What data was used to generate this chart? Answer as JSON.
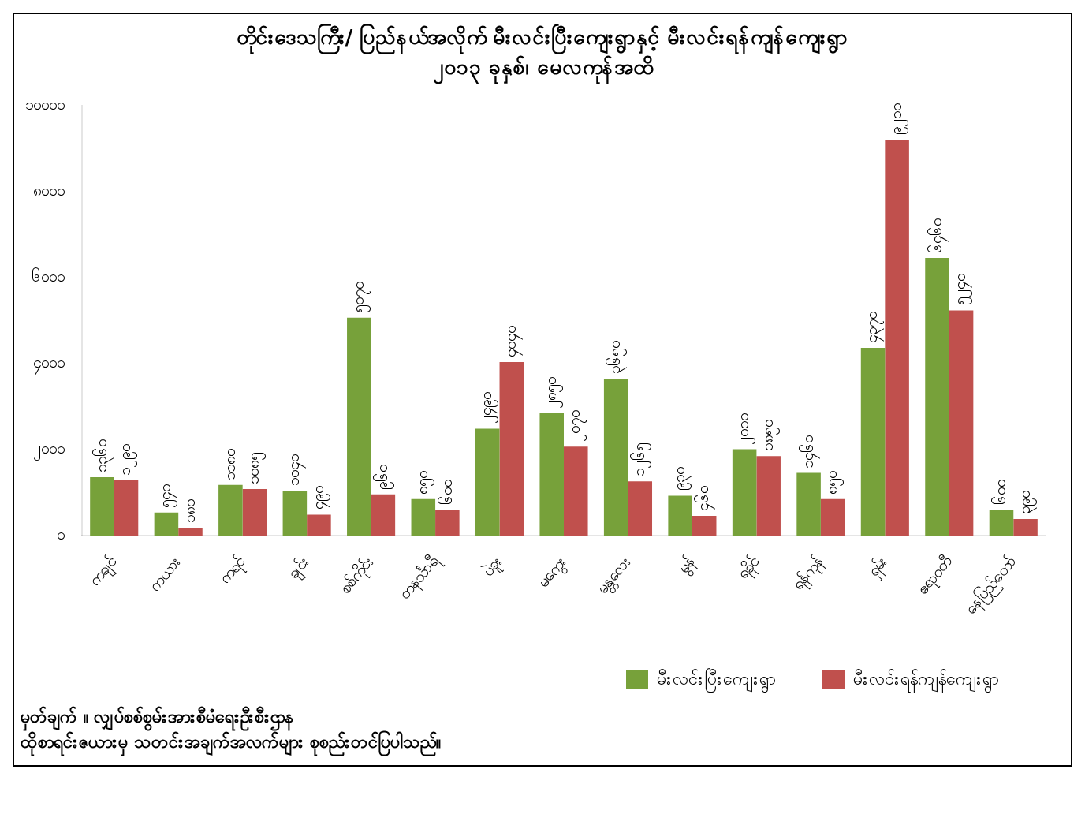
{
  "chart_data": {
    "type": "bar",
    "title": "တိုင်းဒေသကြီး/ ပြည်နယ်အလိုက် မီးလင်းပြီးကျေးရွာနှင့် မီးလင်းရန်ကျန်ကျေးရွာ",
    "subtitle": "၂၀၁၃ ခုနှစ်၊ မေလကုန်အထိ",
    "categories": [
      "ကချင်",
      "ကယား",
      "ကရင်",
      "ချင်း",
      "စစ်ကိုင်း",
      "တနင်္သာရီ",
      "ပဲခူး",
      "မကွေး",
      "မန္တလေး",
      "မွန်",
      "ရခိုင်",
      "ရန်ကုန်",
      "ရှမ်း",
      "ဧရာဝတီ",
      "နေပြည်တော်"
    ],
    "series": [
      {
        "name": "မီးလင်းပြီးကျေးရွာ",
        "color": "#77a13a",
        "values": [
          1360,
          540,
          1180,
          1040,
          5070,
          850,
          2490,
          2850,
          3650,
          930,
          2010,
          1460,
          4370,
          6460,
          600
        ],
        "value_labels": [
          "၁၃၆၀",
          "၅၄၀",
          "၁၁၈၀",
          "၁၀၄၀",
          "၅၀၇၀",
          "၈၅၀",
          "၂၄၉၀",
          "၂၈၅၀",
          "၃၆၅၀",
          "၉၃၀",
          "၂၀၁၀",
          "၁၄၆၀",
          "၄၃၇၀",
          "၆၄၆၀",
          "၆၀၀"
        ]
      },
      {
        "name": "မီးလင်းရန်ကျန်ကျေးရွာ",
        "color": "#c0504d",
        "values": [
          1290,
          180,
          1085,
          490,
          960,
          600,
          4040,
          2070,
          1265,
          460,
          1850,
          850,
          9210,
          5240,
          390
        ],
        "value_labels": [
          "၁၂၉၀",
          "၁၈၀",
          "၁၀၈၅",
          "၄၉၀",
          "၉၆၀",
          "၆၀၀",
          "၄၀၄၀",
          "၂၀၇၀",
          "၁၂၆၅",
          "၄၆၀",
          "၁၈၅၀",
          "၈၅၀",
          "၉၂၁၀",
          "၅၂၄၀",
          "၃၉၀"
        ]
      }
    ],
    "ylim": [
      0,
      10000
    ],
    "yticks": [
      {
        "value": 0,
        "label": "၀"
      },
      {
        "value": 2000,
        "label": "၂၀၀၀"
      },
      {
        "value": 4000,
        "label": "၄၀၀၀"
      },
      {
        "value": 6000,
        "label": "၆၀၀၀"
      },
      {
        "value": 8000,
        "label": "၈၀၀၀"
      },
      {
        "value": 10000,
        "label": "၁၀၀၀၀"
      }
    ],
    "grid": false,
    "legend": "bottom right",
    "annotations": [
      "မှတ်ချက် ။ လျှပ်စစ်စွမ်းအားစီမံရေးဦးစီးဌာန",
      "ထိုစာရင်းဇယားမှ သတင်းအချက်အလက်များ စုစည်းတင်ပြပါသည်။"
    ]
  }
}
